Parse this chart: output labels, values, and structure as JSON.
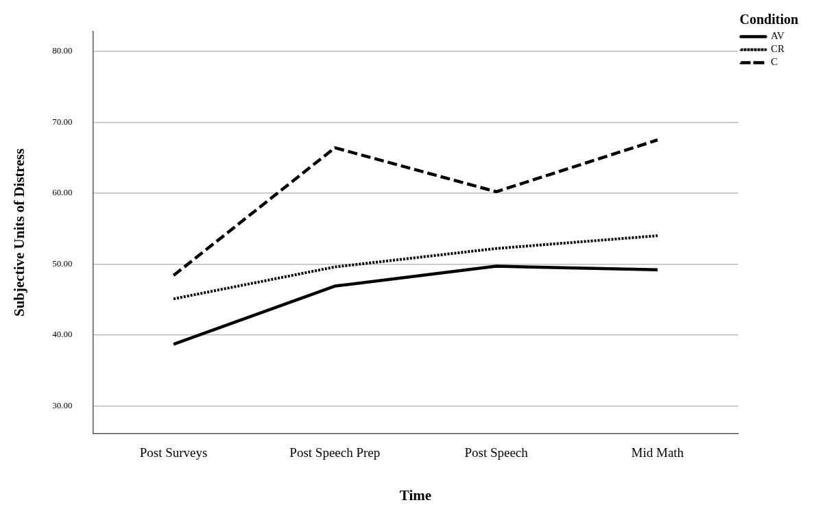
{
  "chart_data": {
    "type": "line",
    "xlabel": "Time",
    "ylabel": "Subjective Units of Distress",
    "legend_title": "Condition",
    "legend": "top right",
    "grid": "y",
    "marker": "none",
    "categories": [
      "Post Surveys",
      "Post Speech Prep",
      "Post Speech",
      "Mid Math"
    ],
    "ylim": [
      26.1,
      82.8
    ],
    "yticks": [
      {
        "value": 30,
        "label": "30.00"
      },
      {
        "value": 40,
        "label": "40.00"
      },
      {
        "value": 50,
        "label": "50.00"
      },
      {
        "value": 60,
        "label": "60.00"
      },
      {
        "value": 70,
        "label": "70.00"
      },
      {
        "value": 80,
        "label": "80.00"
      }
    ],
    "series": [
      {
        "name": "AV",
        "color": "#000000",
        "line_style": "solid",
        "values": [
          38.7,
          46.9,
          49.7,
          49.2
        ]
      },
      {
        "name": "CR",
        "color": "#000000",
        "line_style": "dotted",
        "values": [
          45.1,
          49.6,
          52.2,
          54.0
        ]
      },
      {
        "name": "C",
        "color": "#000000",
        "line_style": "dashed",
        "values": [
          48.4,
          66.4,
          60.2,
          67.5
        ]
      }
    ]
  }
}
